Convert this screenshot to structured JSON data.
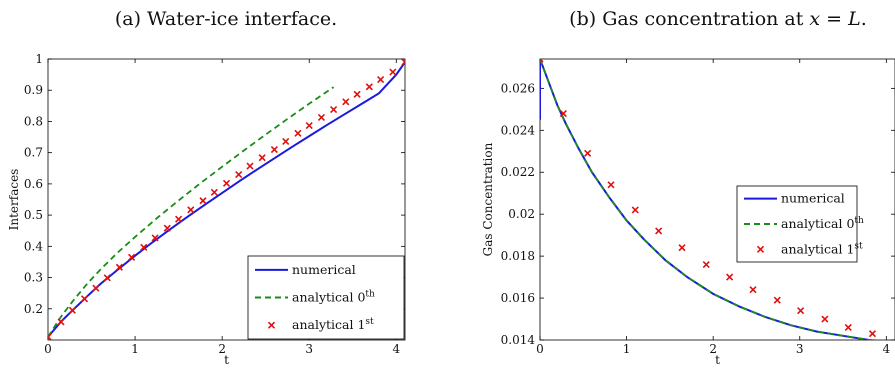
{
  "chart_data": [
    {
      "type": "line",
      "title": "(a) Water-ice interface.",
      "xlabel": "t",
      "ylabel": "Interfaces",
      "xlim": [
        0,
        4.1
      ],
      "ylim": [
        0.1,
        1.0
      ],
      "xticks": [
        "0",
        "1",
        "2",
        "3",
        "4"
      ],
      "yticks": [
        "0.2",
        "0.3",
        "0.4",
        "0.5",
        "0.6",
        "0.7",
        "0.8",
        "0.9",
        "1"
      ],
      "legend_position": "bottom-right",
      "series": [
        {
          "name": "numerical",
          "style": "solid",
          "color": "#1a1adf",
          "x": [
            0,
            0.15,
            0.3,
            0.45,
            0.6,
            0.8,
            1.0,
            1.2,
            1.4,
            1.6,
            1.8,
            2.0,
            2.2,
            2.4,
            2.6,
            2.8,
            3.0,
            3.2,
            3.4,
            3.6,
            3.8,
            4.0,
            4.1
          ],
          "y": [
            0.11,
            0.159,
            0.2,
            0.24,
            0.279,
            0.325,
            0.37,
            0.413,
            0.454,
            0.494,
            0.533,
            0.571,
            0.609,
            0.646,
            0.682,
            0.718,
            0.753,
            0.788,
            0.822,
            0.856,
            0.89,
            0.95,
            0.99
          ]
        },
        {
          "name": "analytical 0th",
          "style": "dashed",
          "color": "#1a8c1a",
          "x": [
            0,
            0.15,
            0.3,
            0.45,
            0.6,
            0.8,
            1.0,
            1.25,
            1.5,
            1.75,
            2.0,
            2.25,
            2.5,
            2.75,
            3.0,
            3.28
          ],
          "y": [
            0.11,
            0.175,
            0.23,
            0.28,
            0.325,
            0.38,
            0.43,
            0.49,
            0.547,
            0.602,
            0.655,
            0.707,
            0.758,
            0.808,
            0.857,
            0.91
          ]
        },
        {
          "name": "analytical 1st",
          "style": "markers-x",
          "color": "#e01010",
          "x": [
            0,
            0.15,
            0.28,
            0.42,
            0.55,
            0.68,
            0.82,
            0.96,
            1.1,
            1.23,
            1.37,
            1.5,
            1.64,
            1.78,
            1.91,
            2.05,
            2.19,
            2.32,
            2.46,
            2.6,
            2.73,
            2.87,
            3.0,
            3.14,
            3.28,
            3.42,
            3.55,
            3.69,
            3.82,
            3.96,
            4.1
          ],
          "y": [
            0.11,
            0.158,
            0.195,
            0.232,
            0.266,
            0.299,
            0.333,
            0.365,
            0.397,
            0.427,
            0.458,
            0.487,
            0.517,
            0.546,
            0.573,
            0.602,
            0.63,
            0.657,
            0.684,
            0.71,
            0.736,
            0.762,
            0.787,
            0.813,
            0.838,
            0.863,
            0.887,
            0.911,
            0.934,
            0.958,
            0.99
          ]
        }
      ]
    },
    {
      "type": "line",
      "title": "(b) Gas concentration at x = L.",
      "xlabel": "t",
      "ylabel": "Gas Concentration",
      "xlim": [
        0,
        4.1
      ],
      "ylim": [
        0.014,
        0.0274
      ],
      "xticks": [
        "0",
        "1",
        "2",
        "3",
        "4"
      ],
      "yticks": [
        "0.014",
        "0.016",
        "0.018",
        "0.02",
        "0.022",
        "0.024",
        "0.026"
      ],
      "legend_position": "top-right",
      "series": [
        {
          "name": "numerical",
          "style": "solid",
          "color": "#1a1adf",
          "x": [
            0,
            0,
            0.1,
            0.2,
            0.3,
            0.45,
            0.6,
            0.8,
            1.0,
            1.2,
            1.45,
            1.7,
            2.0,
            2.3,
            2.6,
            2.9,
            3.2,
            3.5,
            3.8,
            4.1
          ],
          "y": [
            0.0245,
            0.0274,
            0.0263,
            0.0252,
            0.0243,
            0.0231,
            0.022,
            0.0208,
            0.0197,
            0.0188,
            0.0178,
            0.017,
            0.0162,
            0.0156,
            0.0151,
            0.0147,
            0.0144,
            0.0142,
            0.014,
            0.0139
          ]
        },
        {
          "name": "analytical 0th",
          "style": "dashed",
          "color": "#1a8c1a",
          "x": [
            0,
            0.1,
            0.2,
            0.3,
            0.45,
            0.6,
            0.8,
            1.0,
            1.2,
            1.45,
            1.7,
            2.0,
            2.3,
            2.6,
            2.9,
            3.2,
            3.5,
            3.8,
            4.1
          ],
          "y": [
            0.0274,
            0.0263,
            0.0252,
            0.0243,
            0.0231,
            0.022,
            0.0208,
            0.0197,
            0.0188,
            0.0178,
            0.017,
            0.0162,
            0.0156,
            0.0151,
            0.0147,
            0.0144,
            0.0142,
            0.014,
            0.0139
          ]
        },
        {
          "name": "analytical 1st",
          "style": "markers-x",
          "color": "#e01010",
          "x": [
            0,
            0.27,
            0.55,
            0.82,
            1.1,
            1.37,
            1.64,
            1.92,
            2.19,
            2.46,
            2.74,
            3.01,
            3.29,
            3.56,
            3.84
          ],
          "y": [
            0.0274,
            0.0248,
            0.0229,
            0.0214,
            0.0202,
            0.0192,
            0.0184,
            0.0176,
            0.017,
            0.0164,
            0.0159,
            0.0154,
            0.015,
            0.0146,
            0.0143
          ]
        }
      ]
    }
  ]
}
